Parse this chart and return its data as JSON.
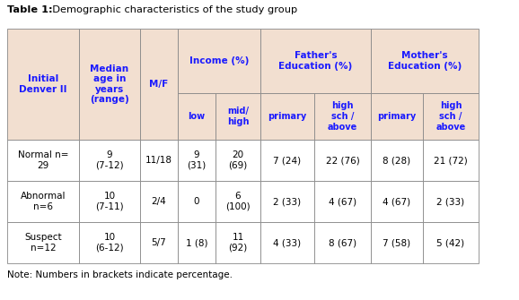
{
  "title_bold": "Table 1:",
  "title_normal": "  Demographic characteristics of the study group",
  "note": "Note: Numbers in brackets indicate percentage.",
  "header_bg": "#f2dfd0",
  "data_bg": "#ffffff",
  "border_color": "#888888",
  "header_text_color": "#1a1aff",
  "data_text_color": "#000000",
  "rows": [
    [
      "Normal n=\n29",
      "9\n(7-12)",
      "11/18",
      "9\n(31)",
      "20\n(69)",
      "7 (24)",
      "22 (76)",
      "8 (28)",
      "21 (72)"
    ],
    [
      "Abnormal\nn=6",
      "10\n(7-11)",
      "2/4",
      "0",
      "6\n(100)",
      "2 (33)",
      "4 (67)",
      "4 (67)",
      "2 (33)"
    ],
    [
      "Suspect\nn=12",
      "10\n(6-12)",
      "5/7",
      "1 (8)",
      "11\n(92)",
      "4 (33)",
      "8 (67)",
      "7 (58)",
      "5 (42)"
    ]
  ],
  "figsize": [
    5.78,
    3.35
  ],
  "dpi": 100
}
